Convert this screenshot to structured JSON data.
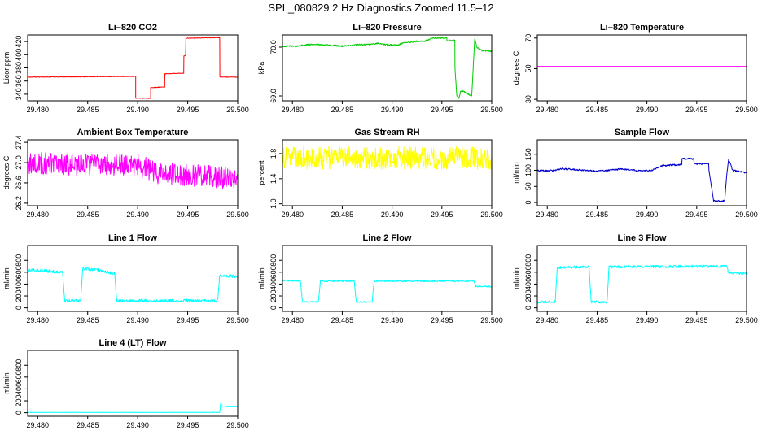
{
  "figure": {
    "title": "SPL_080829  2 Hz Diagnostics Zoomed 11.5–12"
  },
  "chart_data": [
    {
      "type": "line",
      "title": "Li–820 CO2",
      "xlabel": "",
      "ylabel": "Licor ppm",
      "xlim": [
        29.479,
        29.5
      ],
      "ylim": [
        330,
        430
      ],
      "xticks": [
        "29.480",
        "29.485",
        "29.490",
        "29.495",
        "29.500"
      ],
      "yticks": [
        "340",
        "360",
        "380",
        "400",
        "420"
      ],
      "series": [
        {
          "color": "#ff0000",
          "noise": 0.4,
          "x": [
            29.479,
            29.4898,
            29.4898,
            29.4913,
            29.4913,
            29.4927,
            29.4927,
            29.4946,
            29.4946,
            29.4948,
            29.4948,
            29.4982,
            29.4982,
            29.499,
            29.499,
            29.5
          ],
          "y": [
            366,
            367,
            334,
            334,
            350,
            351,
            371,
            372,
            398,
            399,
            425,
            426,
            366,
            366,
            366,
            366
          ]
        }
      ]
    },
    {
      "type": "line",
      "title": "Li–820 Pressure",
      "xlabel": "",
      "ylabel": "kPa",
      "xlim": [
        29.479,
        29.5
      ],
      "ylim": [
        68.9,
        70.25
      ],
      "xticks": [
        "29.480",
        "29.485",
        "29.490",
        "29.495",
        "29.500"
      ],
      "yticks": [
        "69.0",
        "70.0"
      ],
      "series": [
        {
          "color": "#00cc00",
          "noise": 0.015,
          "x": [
            29.479,
            29.4805,
            29.4815,
            29.483,
            29.485,
            29.4865,
            29.488,
            29.4885,
            29.4895,
            29.4905,
            29.491,
            29.4925,
            29.4933,
            29.494,
            29.4955,
            29.4955,
            29.4963,
            29.4963,
            29.4965,
            29.4967,
            29.4969,
            29.4971,
            29.498,
            29.4982,
            29.4983,
            29.4985,
            29.499,
            29.5
          ],
          "y": [
            70.02,
            70.02,
            70.05,
            70.05,
            70.02,
            70.05,
            70.06,
            70.08,
            70.05,
            70.04,
            70.08,
            70.12,
            70.12,
            70.19,
            70.19,
            70.14,
            70.14,
            69.6,
            69.0,
            68.95,
            69.1,
            69.1,
            69.0,
            69.8,
            70.18,
            70.0,
            69.93,
            69.92
          ]
        }
      ]
    },
    {
      "type": "line",
      "title": "Li–820 Temperature",
      "xlabel": "",
      "ylabel": "degrees C",
      "xlim": [
        29.479,
        29.5
      ],
      "ylim": [
        29,
        72
      ],
      "xticks": [
        "29.480",
        "29.485",
        "29.490",
        "29.495",
        "29.500"
      ],
      "yticks": [
        "30",
        "50",
        "70"
      ],
      "series": [
        {
          "color": "#ff00ff",
          "noise": 0,
          "x": [
            29.479,
            29.5
          ],
          "y": [
            51.5,
            51.5
          ]
        }
      ]
    },
    {
      "type": "line",
      "title": "Ambient Box Temperature",
      "xlabel": "",
      "ylabel": "degrees C",
      "xlim": [
        29.479,
        29.5
      ],
      "ylim": [
        26.15,
        27.45
      ],
      "xticks": [
        "29.480",
        "29.485",
        "29.490",
        "29.495",
        "29.500"
      ],
      "yticks": [
        "26.2",
        "26.6",
        "27.0",
        "27.4"
      ],
      "series": [
        {
          "color": "#ff00ff",
          "noise": 0.22,
          "x": [
            29.479,
            29.49,
            29.492,
            29.499,
            29.5
          ],
          "y": [
            26.98,
            26.95,
            26.8,
            26.7,
            26.65
          ]
        }
      ]
    },
    {
      "type": "line",
      "title": "Gas Stream RH",
      "xlabel": "",
      "ylabel": "percent",
      "xlim": [
        29.479,
        29.5
      ],
      "ylim": [
        0.97,
        2.02
      ],
      "xticks": [
        "29.480",
        "29.485",
        "29.490",
        "29.495",
        "29.500"
      ],
      "yticks": [
        "1.0",
        "1.4",
        "1.8"
      ],
      "series": [
        {
          "color": "#ffff00",
          "noise": 0.18,
          "x": [
            29.479,
            29.5
          ],
          "y": [
            1.73,
            1.73
          ]
        }
      ]
    },
    {
      "type": "line",
      "title": "Sample Flow",
      "xlabel": "",
      "ylabel": "ml/min",
      "xlim": [
        29.479,
        29.5
      ],
      "ylim": [
        -10,
        195
      ],
      "xticks": [
        "29.480",
        "29.485",
        "29.490",
        "29.495",
        "29.500"
      ],
      "yticks": [
        "0",
        "50",
        "100",
        "150"
      ],
      "series": [
        {
          "color": "#0000cc",
          "noise": 2.5,
          "x": [
            29.479,
            29.4805,
            29.4815,
            29.483,
            29.485,
            29.486,
            29.4875,
            29.4885,
            29.489,
            29.4905,
            29.4915,
            29.4935,
            29.4935,
            29.4947,
            29.4947,
            29.4962,
            29.4962,
            29.4967,
            29.4967,
            29.4978,
            29.498,
            29.4982,
            29.4986,
            29.5
          ],
          "y": [
            99,
            99,
            105,
            102,
            97,
            100,
            104,
            102,
            98,
            100,
            115,
            118,
            137,
            135,
            120,
            120,
            105,
            5,
            5,
            5,
            80,
            135,
            100,
            92
          ]
        }
      ]
    },
    {
      "type": "line",
      "title": "Line 1 Flow",
      "xlabel": "",
      "ylabel": "ml/min",
      "xlim": [
        29.479,
        29.5
      ],
      "ylim": [
        -60,
        1050
      ],
      "xticks": [
        "29.480",
        "29.485",
        "29.490",
        "29.495",
        "29.500"
      ],
      "yticks": [
        "0",
        "200",
        "400",
        "600",
        "800"
      ],
      "series": [
        {
          "color": "#00ffff",
          "noise": 25,
          "x": [
            29.479,
            29.481,
            29.4825,
            29.4827,
            29.4843,
            29.4845,
            29.486,
            29.487,
            29.4877,
            29.4879,
            29.498,
            29.4982,
            29.5
          ],
          "y": [
            640,
            620,
            600,
            120,
            120,
            660,
            640,
            600,
            580,
            120,
            120,
            540,
            530
          ]
        }
      ]
    },
    {
      "type": "line",
      "title": "Line 2 Flow",
      "xlabel": "",
      "ylabel": "ml/min",
      "xlim": [
        29.479,
        29.5
      ],
      "ylim": [
        -60,
        1050
      ],
      "xticks": [
        "29.480",
        "29.485",
        "29.490",
        "29.495",
        "29.500"
      ],
      "yticks": [
        "0",
        "200",
        "400",
        "600",
        "800"
      ],
      "series": [
        {
          "color": "#00ffff",
          "noise": 12,
          "x": [
            29.479,
            29.4808,
            29.481,
            29.4826,
            29.4828,
            29.4862,
            29.4864,
            29.488,
            29.4882,
            29.4982,
            29.4984,
            29.5
          ],
          "y": [
            460,
            455,
            100,
            100,
            450,
            450,
            100,
            100,
            450,
            450,
            360,
            360
          ]
        }
      ]
    },
    {
      "type": "line",
      "title": "Line 3 Flow",
      "xlabel": "",
      "ylabel": "ml/min",
      "xlim": [
        29.479,
        29.5
      ],
      "ylim": [
        -60,
        1050
      ],
      "xticks": [
        "29.480",
        "29.485",
        "29.490",
        "29.495",
        "29.500"
      ],
      "yticks": [
        "0",
        "200",
        "400",
        "600",
        "800"
      ],
      "series": [
        {
          "color": "#00ffff",
          "noise": 22,
          "x": [
            29.479,
            29.4808,
            29.481,
            29.4842,
            29.4844,
            29.486,
            29.4862,
            29.498,
            29.4982,
            29.5
          ],
          "y": [
            100,
            100,
            680,
            690,
            100,
            100,
            690,
            700,
            590,
            580
          ]
        }
      ]
    },
    {
      "type": "line",
      "title": "Line 4 (LT) Flow",
      "xlabel": "",
      "ylabel": "ml/min",
      "xlim": [
        29.479,
        29.5
      ],
      "ylim": [
        -60,
        1050
      ],
      "xticks": [
        "29.480",
        "29.485",
        "29.490",
        "29.495",
        "29.500"
      ],
      "yticks": [
        "0",
        "200",
        "400",
        "600",
        "800"
      ],
      "series": [
        {
          "color": "#00ffff",
          "noise": 2,
          "x": [
            29.479,
            29.4982,
            29.4983,
            29.4985,
            29.499,
            29.5
          ],
          "y": [
            5,
            5,
            160,
            110,
            100,
            100
          ]
        }
      ]
    }
  ]
}
